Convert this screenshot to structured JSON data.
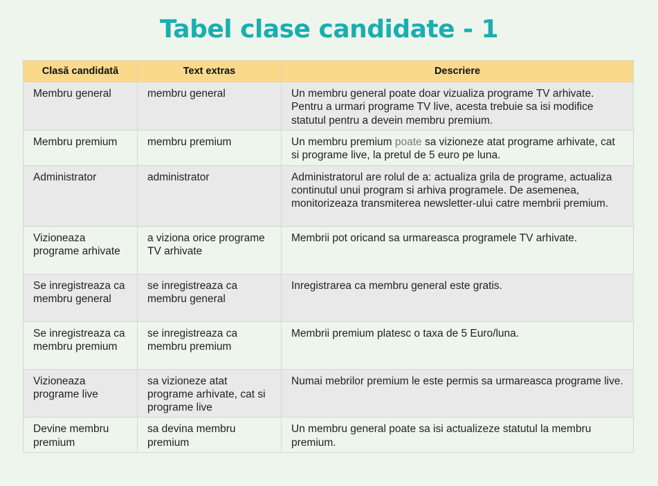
{
  "title": "Tabel clase candidate - 1",
  "table": {
    "headers": [
      "Clasă candidată",
      "Text extras",
      "Descriere"
    ],
    "rows": [
      {
        "clasa": "Membru general",
        "text": "membru general",
        "descriere": "Un membru general poate doar vizualiza programe TV arhivate. Pentru a urmari programe TV live, acesta trebuie sa isi modifice statutul pentru a devein membru premium."
      },
      {
        "clasa": "Membru premium",
        "text": "membru premium",
        "descriere_pre": "Un membru premium ",
        "descriere_hl": "poate",
        "descriere_post": " sa vizioneze atat programe arhivate, cat si programe live, la pretul de 5 euro pe luna."
      },
      {
        "clasa": "Administrator",
        "text": "administrator",
        "descriere": "Administratorul are rolul de a: actualiza grila de programe, actualiza continutul unui program si arhiva programele. De asemenea, monitorizeaza transmiterea newsletter-ului catre membrii premium."
      },
      {
        "clasa": "Vizioneaza programe arhivate",
        "text": "a viziona orice programe TV arhivate",
        "descriere": "Membrii pot oricand sa urmareasca programele TV arhivate."
      },
      {
        "clasa": "Se inregistreaza ca membru general",
        "text": "se inregistreaza ca membru general",
        "descriere": "Inregistrarea ca membru general este gratis."
      },
      {
        "clasa": "Se inregistreaza ca membru premium",
        "text": "se inregistreaza ca membru premium",
        "descriere": "Membrii premium platesc o taxa de 5 Euro/luna."
      },
      {
        "clasa": "Vizioneaza programe live",
        "text": "sa vizioneze atat programe arhivate, cat si programe live",
        "descriere": "Numai mebrilor premium le este permis sa urmareasca programe live."
      },
      {
        "clasa": "Devine membru premium",
        "text": "sa devina membru premium",
        "descriere": "Un membru general poate sa isi actualizeze statutul la membru premium."
      }
    ]
  }
}
